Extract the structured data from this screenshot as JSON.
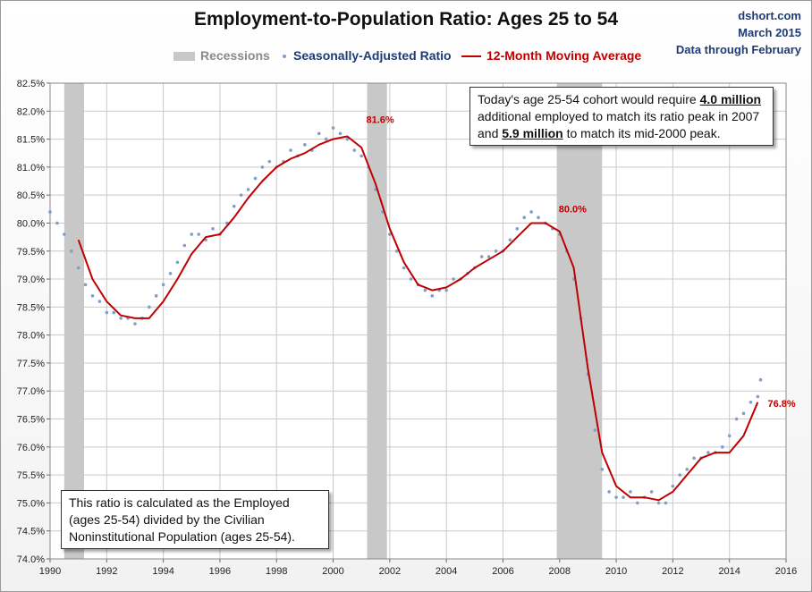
{
  "title": "Employment-to-Population Ratio: Ages 25 to 54",
  "source": {
    "line1": "dshort.com",
    "line2": "March 2015",
    "line3": "Data through February"
  },
  "legend": {
    "recessions": "Recessions",
    "ratio": "Seasonally-Adjusted Ratio",
    "ma": "12-Month Moving Average"
  },
  "colors": {
    "recession": "#c8c8c8",
    "dots": "#7f9fc8",
    "ma_line": "#c00000",
    "legend_recession_text": "#8a8a8a",
    "legend_ratio_text": "#1f3b73",
    "legend_ma_text": "#c00000",
    "label_text": "#c00000"
  },
  "note_top": {
    "p1": "Today's age 25-54 cohort would require",
    "v1": "4.0 million",
    "p2": "additional employed to match its ratio peak in 2007",
    "p3": "and",
    "v2": "5.9 million",
    "p4": "to match its mid-2000 peak."
  },
  "note_bottom": {
    "line1": "This ratio is calculated as the Employed",
    "line2": "(ages 25-54) divided by the Civilian",
    "line3": "Noninstitutional Population (ages 25-54)."
  },
  "chart_data": {
    "type": "scatter",
    "title": "Employment-to-Population Ratio: Ages 25 to 54",
    "xlim": [
      1990,
      2016
    ],
    "ylim": [
      74.0,
      82.5
    ],
    "x_ticks": [
      "1990",
      "1992",
      "1994",
      "1996",
      "1998",
      "2000",
      "2002",
      "2004",
      "2006",
      "2008",
      "2010",
      "2012",
      "2014",
      "2016"
    ],
    "y_ticks": [
      "74.0%",
      "74.5%",
      "75.0%",
      "75.5%",
      "76.0%",
      "76.5%",
      "77.0%",
      "77.5%",
      "78.0%",
      "78.5%",
      "79.0%",
      "79.5%",
      "80.0%",
      "80.5%",
      "81.0%",
      "81.5%",
      "82.0%",
      "82.5%"
    ],
    "grid": true,
    "legend_position": "top",
    "recessions": [
      [
        1990.5,
        1991.2
      ],
      [
        2001.2,
        2001.9
      ],
      [
        2007.9,
        2009.5
      ]
    ],
    "series": [
      {
        "name": "Seasonally-Adjusted Ratio",
        "type": "scatter",
        "x": [
          1990.0,
          1990.25,
          1990.5,
          1990.75,
          1991.0,
          1991.25,
          1991.5,
          1991.75,
          1992.0,
          1992.25,
          1992.5,
          1992.75,
          1993.0,
          1993.25,
          1993.5,
          1993.75,
          1994.0,
          1994.25,
          1994.5,
          1994.75,
          1995.0,
          1995.25,
          1995.5,
          1995.75,
          1996.0,
          1996.25,
          1996.5,
          1996.75,
          1997.0,
          1997.25,
          1997.5,
          1997.75,
          1998.0,
          1998.25,
          1998.5,
          1998.75,
          1999.0,
          1999.25,
          1999.5,
          1999.75,
          2000.0,
          2000.25,
          2000.5,
          2000.75,
          2001.0,
          2001.25,
          2001.5,
          2001.75,
          2002.0,
          2002.25,
          2002.5,
          2002.75,
          2003.0,
          2003.25,
          2003.5,
          2003.75,
          2004.0,
          2004.25,
          2004.5,
          2004.75,
          2005.0,
          2005.25,
          2005.5,
          2005.75,
          2006.0,
          2006.25,
          2006.5,
          2006.75,
          2007.0,
          2007.25,
          2007.5,
          2007.75,
          2008.0,
          2008.25,
          2008.5,
          2008.75,
          2009.0,
          2009.25,
          2009.5,
          2009.75,
          2010.0,
          2010.25,
          2010.5,
          2010.75,
          2011.0,
          2011.25,
          2011.5,
          2011.75,
          2012.0,
          2012.25,
          2012.5,
          2012.75,
          2013.0,
          2013.25,
          2013.5,
          2013.75,
          2014.0,
          2014.25,
          2014.5,
          2014.75,
          2015.0,
          2015.1
        ],
        "y": [
          80.2,
          80.0,
          79.8,
          79.5,
          79.2,
          78.9,
          78.7,
          78.6,
          78.4,
          78.4,
          78.3,
          78.3,
          78.2,
          78.3,
          78.5,
          78.7,
          78.9,
          79.1,
          79.3,
          79.6,
          79.8,
          79.8,
          79.7,
          79.9,
          79.8,
          80.0,
          80.3,
          80.5,
          80.6,
          80.8,
          81.0,
          81.1,
          81.0,
          81.1,
          81.3,
          81.2,
          81.4,
          81.3,
          81.6,
          81.5,
          81.7,
          81.6,
          81.5,
          81.3,
          81.2,
          81.0,
          80.6,
          80.2,
          79.8,
          79.5,
          79.2,
          79.0,
          78.9,
          78.8,
          78.7,
          78.8,
          78.8,
          79.0,
          79.0,
          79.1,
          79.2,
          79.4,
          79.4,
          79.5,
          79.5,
          79.7,
          79.9,
          80.1,
          80.2,
          80.1,
          80.0,
          79.9,
          79.8,
          79.5,
          79.0,
          78.3,
          77.3,
          76.3,
          75.6,
          75.2,
          75.1,
          75.1,
          75.2,
          75.0,
          75.1,
          75.2,
          75.0,
          75.0,
          75.3,
          75.5,
          75.6,
          75.8,
          75.8,
          75.9,
          75.9,
          76.0,
          76.2,
          76.5,
          76.6,
          76.8,
          76.9,
          77.2
        ]
      },
      {
        "name": "12-Month Moving Average",
        "type": "line",
        "x": [
          1991.0,
          1991.5,
          1992.0,
          1992.5,
          1993.0,
          1993.5,
          1994.0,
          1994.5,
          1995.0,
          1995.5,
          1996.0,
          1996.5,
          1997.0,
          1997.5,
          1998.0,
          1998.5,
          1999.0,
          1999.5,
          2000.0,
          2000.5,
          2001.0,
          2001.5,
          2002.0,
          2002.5,
          2003.0,
          2003.5,
          2004.0,
          2004.5,
          2005.0,
          2005.5,
          2006.0,
          2006.5,
          2007.0,
          2007.5,
          2008.0,
          2008.5,
          2009.0,
          2009.5,
          2010.0,
          2010.5,
          2011.0,
          2011.5,
          2012.0,
          2012.5,
          2013.0,
          2013.5,
          2014.0,
          2014.5,
          2015.0
        ],
        "y": [
          79.7,
          79.0,
          78.6,
          78.35,
          78.3,
          78.3,
          78.6,
          79.0,
          79.45,
          79.75,
          79.8,
          80.1,
          80.45,
          80.75,
          81.0,
          81.15,
          81.25,
          81.4,
          81.5,
          81.55,
          81.35,
          80.7,
          79.9,
          79.3,
          78.9,
          78.8,
          78.85,
          79.0,
          79.2,
          79.35,
          79.5,
          79.75,
          80.0,
          80.0,
          79.85,
          79.2,
          77.4,
          75.9,
          75.3,
          75.1,
          75.1,
          75.05,
          75.2,
          75.5,
          75.8,
          75.9,
          75.9,
          76.2,
          76.8
        ]
      }
    ],
    "annotations": [
      {
        "text": "81.6%",
        "x": 2000.6,
        "y": 81.6
      },
      {
        "text": "80.0%",
        "x": 2007.4,
        "y": 80.0
      },
      {
        "text": "76.8%",
        "x": 2015.1,
        "y": 76.8
      }
    ]
  }
}
